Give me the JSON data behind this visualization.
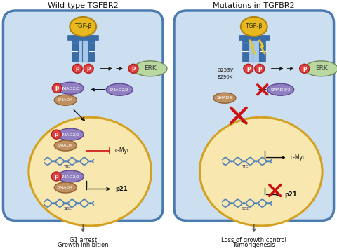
{
  "title_left": "Wild-type TGFBR2",
  "title_right": "Mutations in TGFBR2",
  "bottom_left_1": "G1 arrest",
  "bottom_left_2": "Growth inhibition",
  "bottom_right_1": "Loss of growth control",
  "bottom_right_2": "Tumorigenesis",
  "mutations_1": "G253V",
  "mutations_2": "E290K",
  "bg_color": "#ffffff",
  "cell_bg": "#ccdff0",
  "nucleus_color": "#f8e8b0",
  "cell_border": "#4a7ab0",
  "nucleus_border": "#d4a020",
  "receptor_fill": "#a8c8e8",
  "receptor_border": "#3a6ca8",
  "receptor_bar_color": "#3a6ca8",
  "tgfb_fill": "#e8b820",
  "tgfb_border": "#b08010",
  "smad23_fill": "#9080c0",
  "smad23_border": "#604898",
  "smad4_fill": "#c09060",
  "smad4_border": "#906030",
  "p_fill": "#e04040",
  "p_border": "#b02020",
  "erk_fill": "#b8d8a0",
  "erk_border": "#708858",
  "arrow_color": "#222222",
  "x_color": "#cc1010",
  "text_color": "#111111",
  "dna_color": "#5080b8",
  "inhibit_bar_color": "#cc1010",
  "gene_arrow_color": "#111111"
}
